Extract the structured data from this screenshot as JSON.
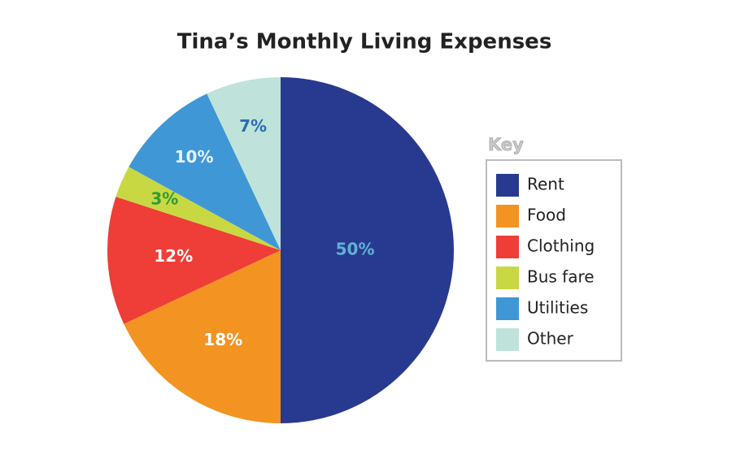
{
  "chart_data": {
    "type": "pie",
    "title": "Tina’s Monthly Living Expenses",
    "categories": [
      "Rent",
      "Food",
      "Clothing",
      "Bus fare",
      "Utilities",
      "Other"
    ],
    "values": [
      50,
      18,
      12,
      3,
      10,
      7
    ],
    "value_labels": [
      "50%",
      "18%",
      "12%",
      "3%",
      "10%",
      "7%"
    ],
    "colors": [
      "#283a8f",
      "#f39322",
      "#ee3e37",
      "#c8d843",
      "#3f97d6",
      "#bfe3da"
    ],
    "label_colors": [
      "#5fb2d4",
      "#ffffff",
      "#ffffff",
      "#2e9b3a",
      "#e8f4fb",
      "#2a6db3"
    ],
    "legend_title": "Key",
    "legend": "right"
  }
}
